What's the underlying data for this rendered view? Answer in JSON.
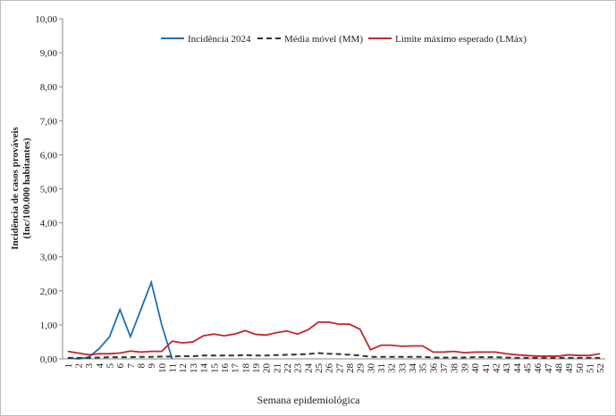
{
  "chart_data": {
    "type": "line",
    "y_label": [
      "Incidência de casos prováveis",
      "(Inc/100.000 habitantes)"
    ],
    "x_label": "Semana epidemiológica",
    "categories": [
      "1",
      "2",
      "3",
      "4",
      "5",
      "6",
      "7",
      "8",
      "9",
      "10",
      "11",
      "12",
      "13",
      "14",
      "15",
      "16",
      "17",
      "18",
      "19",
      "20",
      "21",
      "22",
      "23",
      "24",
      "25",
      "26",
      "27",
      "28",
      "29",
      "30",
      "31",
      "32",
      "33",
      "34",
      "35",
      "36",
      "37",
      "38",
      "39",
      "40",
      "41",
      "42",
      "43",
      "44",
      "45",
      "46",
      "47",
      "48",
      "49",
      "50",
      "51",
      "52"
    ],
    "series": [
      {
        "name": "Incidência 2024",
        "color": "#1f6fb4",
        "dash": false,
        "values": [
          0.03,
          0.0,
          0.05,
          0.3,
          0.65,
          1.45,
          0.65,
          1.45,
          2.25,
          1.0,
          0.0,
          null,
          null,
          null,
          null,
          null,
          null,
          null,
          null,
          null,
          null,
          null,
          null,
          null,
          null,
          null,
          null,
          null,
          null,
          null,
          null,
          null,
          null,
          null,
          null,
          null,
          null,
          null,
          null,
          null,
          null,
          null,
          null,
          null,
          null,
          null,
          null,
          null,
          null,
          null,
          null,
          null
        ]
      },
      {
        "name": "Média móvel (MM)",
        "color": "#333333",
        "dash": true,
        "values": [
          0.03,
          0.03,
          0.03,
          0.04,
          0.05,
          0.05,
          0.05,
          0.06,
          0.06,
          0.07,
          0.07,
          0.08,
          0.08,
          0.1,
          0.1,
          0.1,
          0.1,
          0.11,
          0.1,
          0.1,
          0.11,
          0.12,
          0.13,
          0.14,
          0.17,
          0.15,
          0.14,
          0.12,
          0.1,
          0.06,
          0.06,
          0.06,
          0.06,
          0.06,
          0.06,
          0.04,
          0.04,
          0.04,
          0.04,
          0.05,
          0.05,
          0.05,
          0.04,
          0.03,
          0.03,
          0.03,
          0.03,
          0.03,
          0.03,
          0.03,
          0.03,
          0.03
        ]
      },
      {
        "name": "Limite máximo esperado (LMáx)",
        "color": "#c0272d",
        "dash": false,
        "values": [
          0.22,
          0.17,
          0.12,
          0.15,
          0.15,
          0.17,
          0.23,
          0.2,
          0.22,
          0.22,
          0.52,
          0.47,
          0.5,
          0.68,
          0.73,
          0.68,
          0.73,
          0.83,
          0.72,
          0.7,
          0.77,
          0.82,
          0.73,
          0.85,
          1.08,
          1.08,
          1.02,
          1.02,
          0.87,
          0.27,
          0.4,
          0.4,
          0.37,
          0.38,
          0.38,
          0.2,
          0.2,
          0.22,
          0.18,
          0.2,
          0.2,
          0.2,
          0.15,
          0.12,
          0.1,
          0.08,
          0.08,
          0.08,
          0.12,
          0.1,
          0.1,
          0.15
        ]
      }
    ],
    "ylim": [
      0,
      10
    ],
    "yticks": [
      {
        "value": 0,
        "label": "0,00"
      },
      {
        "value": 1,
        "label": "1,00"
      },
      {
        "value": 2,
        "label": "2,00"
      },
      {
        "value": 3,
        "label": "3,00"
      },
      {
        "value": 4,
        "label": "4,00"
      },
      {
        "value": 5,
        "label": "5,00"
      },
      {
        "value": 6,
        "label": "6,00"
      },
      {
        "value": 7,
        "label": "7,00"
      },
      {
        "value": 8,
        "label": "8,00"
      },
      {
        "value": 9,
        "label": "9,00"
      },
      {
        "value": 10,
        "label": "10,00"
      }
    ],
    "grid": false,
    "legend": "top"
  }
}
